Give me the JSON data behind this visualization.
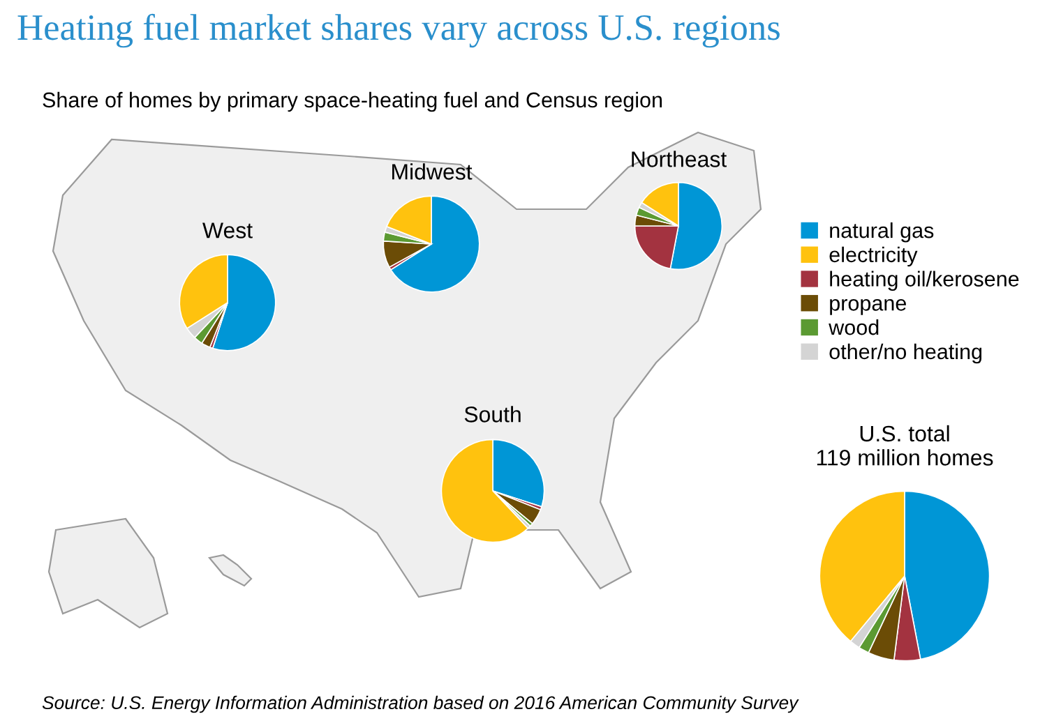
{
  "chart_data": [
    {
      "type": "other",
      "title": "Heating fuel market shares vary across U.S. regions",
      "subtitle": "Share of homes by primary space-heating fuel and Census region",
      "annotations": [
        "Source: U.S. Energy Information Administration based on 2016 American Community Survey"
      ]
    },
    {
      "type": "pie",
      "title": "West",
      "categories": [
        null,
        null,
        null,
        null,
        null,
        null
      ],
      "values": [
        55,
        1,
        3,
        3,
        4,
        34
      ],
      "colors": [
        "#0096d6",
        "#a33340",
        "#6b4c06",
        "#5b9a32",
        "#d4d4d4",
        "#ffc20e"
      ]
    },
    {
      "type": "pie",
      "title": "Midwest",
      "categories": [
        null,
        null,
        null,
        null,
        null,
        null
      ],
      "values": [
        66,
        1,
        9,
        3,
        2,
        19
      ],
      "colors": [
        "#0096d6",
        "#a33340",
        "#6b4c06",
        "#5b9a32",
        "#d4d4d4",
        "#ffc20e"
      ]
    },
    {
      "type": "pie",
      "title": "Northeast",
      "categories": [
        null,
        null,
        null,
        null,
        null,
        null
      ],
      "values": [
        53,
        22,
        4,
        3,
        2,
        16
      ],
      "colors": [
        "#0096d6",
        "#a33340",
        "#6b4c06",
        "#5b9a32",
        "#d4d4d4",
        "#ffc20e"
      ]
    },
    {
      "type": "pie",
      "title": "South",
      "categories": [
        null,
        null,
        null,
        null,
        null,
        null
      ],
      "values": [
        30,
        1,
        5,
        1,
        1,
        62
      ],
      "colors": [
        "#0096d6",
        "#a33340",
        "#6b4c06",
        "#5b9a32",
        "#d4d4d4",
        "#ffc20e"
      ]
    },
    {
      "type": "pie",
      "title": "U.S. total\n119 million homes",
      "categories": [
        "natural gas",
        "heating oil/kerosene",
        "propane",
        "wood",
        "other/no heating",
        "electricity"
      ],
      "values": [
        47,
        5,
        5,
        2,
        2,
        39
      ],
      "colors": [
        "#0096d6",
        "#a33340",
        "#6b4c06",
        "#5b9a32",
        "#d4d4d4",
        "#ffc20e"
      ],
      "legend": "right"
    }
  ]
}
